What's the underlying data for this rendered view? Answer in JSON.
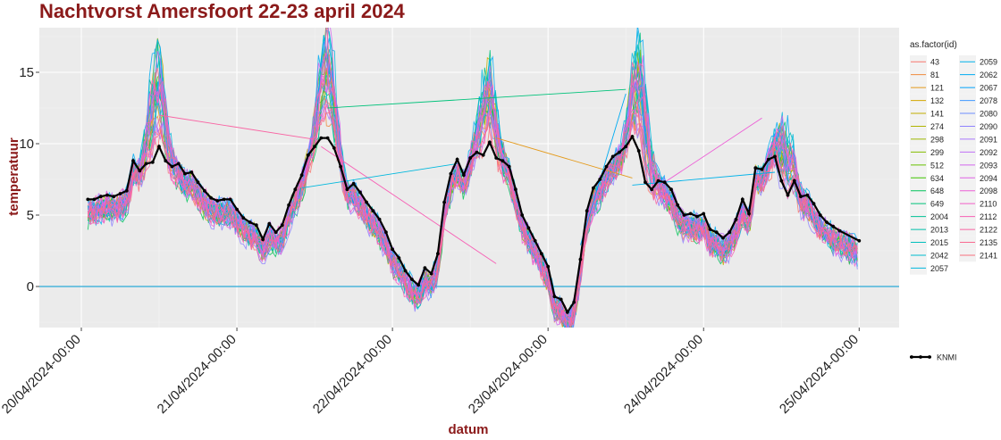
{
  "chart_data": {
    "type": "line",
    "title": "Nachtvorst Amersfoort 22-23 april 2024",
    "xlabel": "datum",
    "ylabel": "temperatuur",
    "ylim": [
      -3.5,
      17.8
    ],
    "xlim": [
      "2024-04-19 23:00",
      "2024-04-25 05:00"
    ],
    "yticks": [
      0,
      5,
      10,
      15
    ],
    "xtick_labels": [
      "20/04/2024-00:00",
      "21/04/2024-00:00",
      "22/04/2024-00:00",
      "23/04/2024-00:00",
      "24/04/2024-00:00",
      "25/04/2024-00:00"
    ],
    "grid": true,
    "reference_line": {
      "y": 0,
      "color": "#29a9d8"
    },
    "legend": {
      "title": "as.factor(id)",
      "placement": "right",
      "entries": [
        "43",
        "81",
        "121",
        "132",
        "141",
        "274",
        "298",
        "299",
        "512",
        "634",
        "648",
        "649",
        "2004",
        "2013",
        "2015",
        "2042",
        "2057",
        "2059",
        "2062",
        "2067",
        "2078",
        "2080",
        "2090",
        "2091",
        "2092",
        "2093",
        "2094",
        "2098",
        "2110",
        "2112",
        "2122",
        "2135",
        "2141"
      ],
      "colors": [
        "#f8766d",
        "#f08a3c",
        "#e49a1b",
        "#d3a600",
        "#c3ad00",
        "#b0b400",
        "#9bb900",
        "#84bd00",
        "#67c100",
        "#3ec400",
        "#00c35a",
        "#00c27a",
        "#00c194",
        "#00c0aa",
        "#00bfbd",
        "#00bccf",
        "#00b8dd",
        "#00b2e9",
        "#00abf2",
        "#00a2fa",
        "#3f98ff",
        "#6c8dff",
        "#8f82ff",
        "#aa78fd",
        "#bf6ff6",
        "#d166ee",
        "#e062e4",
        "#ec5ed6",
        "#f35fc7",
        "#f760b5",
        "#f964a3",
        "#f96a90",
        "#f8707e"
      ],
      "knmi_label": "KNMI"
    },
    "series": [
      {
        "name": "KNMI",
        "color": "#000000",
        "points": [
          [
            "2024-04-20 01:00",
            6.1
          ],
          [
            "2024-04-20 02:00",
            6.1
          ],
          [
            "2024-04-20 03:00",
            6.3
          ],
          [
            "2024-04-20 04:00",
            6.4
          ],
          [
            "2024-04-20 05:00",
            6.3
          ],
          [
            "2024-04-20 06:00",
            6.5
          ],
          [
            "2024-04-20 07:00",
            6.7
          ],
          [
            "2024-04-20 08:00",
            8.8
          ],
          [
            "2024-04-20 09:00",
            8.1
          ],
          [
            "2024-04-20 10:00",
            8.6
          ],
          [
            "2024-04-20 11:00",
            8.7
          ],
          [
            "2024-04-20 12:00",
            9.8
          ],
          [
            "2024-04-20 13:00",
            8.8
          ],
          [
            "2024-04-20 14:00",
            8.4
          ],
          [
            "2024-04-20 15:00",
            8.6
          ],
          [
            "2024-04-20 16:00",
            7.9
          ],
          [
            "2024-04-20 17:00",
            8.0
          ],
          [
            "2024-04-20 18:00",
            7.3
          ],
          [
            "2024-04-20 19:00",
            6.7
          ],
          [
            "2024-04-20 20:00",
            6.2
          ],
          [
            "2024-04-20 21:00",
            6.0
          ],
          [
            "2024-04-20 22:00",
            6.1
          ],
          [
            "2024-04-20 23:00",
            6.1
          ],
          [
            "2024-04-21 00:00",
            5.4
          ],
          [
            "2024-04-21 01:00",
            4.8
          ],
          [
            "2024-04-21 02:00",
            4.5
          ],
          [
            "2024-04-21 03:00",
            4.3
          ],
          [
            "2024-04-21 04:00",
            3.3
          ],
          [
            "2024-04-21 05:00",
            4.4
          ],
          [
            "2024-04-21 06:00",
            3.8
          ],
          [
            "2024-04-21 07:00",
            4.3
          ],
          [
            "2024-04-21 08:00",
            5.7
          ],
          [
            "2024-04-21 09:00",
            6.8
          ],
          [
            "2024-04-21 10:00",
            7.8
          ],
          [
            "2024-04-21 11:00",
            9.2
          ],
          [
            "2024-04-21 12:00",
            9.8
          ],
          [
            "2024-04-21 13:00",
            10.4
          ],
          [
            "2024-04-21 14:00",
            10.4
          ],
          [
            "2024-04-21 15:00",
            9.7
          ],
          [
            "2024-04-21 16:00",
            8.4
          ],
          [
            "2024-04-21 17:00",
            6.8
          ],
          [
            "2024-04-21 18:00",
            7.2
          ],
          [
            "2024-04-21 19:00",
            6.6
          ],
          [
            "2024-04-21 20:00",
            5.9
          ],
          [
            "2024-04-21 21:00",
            5.3
          ],
          [
            "2024-04-21 22:00",
            4.7
          ],
          [
            "2024-04-21 23:00",
            3.8
          ],
          [
            "2024-04-22 00:00",
            2.6
          ],
          [
            "2024-04-22 01:00",
            2.0
          ],
          [
            "2024-04-22 02:00",
            1.1
          ],
          [
            "2024-04-22 03:00",
            0.5
          ],
          [
            "2024-04-22 04:00",
            0.1
          ],
          [
            "2024-04-22 05:00",
            1.3
          ],
          [
            "2024-04-22 06:00",
            0.9
          ],
          [
            "2024-04-22 07:00",
            2.3
          ],
          [
            "2024-04-22 08:00",
            5.9
          ],
          [
            "2024-04-22 09:00",
            7.9
          ],
          [
            "2024-04-22 10:00",
            8.9
          ],
          [
            "2024-04-22 11:00",
            7.8
          ],
          [
            "2024-04-22 12:00",
            9.0
          ],
          [
            "2024-04-22 13:00",
            9.4
          ],
          [
            "2024-04-22 14:00",
            9.2
          ],
          [
            "2024-04-22 15:00",
            10.1
          ],
          [
            "2024-04-22 16:00",
            9.0
          ],
          [
            "2024-04-22 17:00",
            8.8
          ],
          [
            "2024-04-22 18:00",
            8.4
          ],
          [
            "2024-04-22 19:00",
            6.8
          ],
          [
            "2024-04-22 20:00",
            5.0
          ],
          [
            "2024-04-22 21:00",
            4.1
          ],
          [
            "2024-04-22 22:00",
            3.2
          ],
          [
            "2024-04-22 23:00",
            2.3
          ],
          [
            "2024-04-23 00:00",
            1.4
          ],
          [
            "2024-04-23 01:00",
            -0.7
          ],
          [
            "2024-04-23 02:00",
            -0.9
          ],
          [
            "2024-04-23 03:00",
            -1.8
          ],
          [
            "2024-04-23 04:00",
            -1.1
          ],
          [
            "2024-04-23 05:00",
            1.9
          ],
          [
            "2024-04-23 06:00",
            5.3
          ],
          [
            "2024-04-23 07:00",
            6.9
          ],
          [
            "2024-04-23 08:00",
            7.5
          ],
          [
            "2024-04-23 09:00",
            8.4
          ],
          [
            "2024-04-23 10:00",
            9.1
          ],
          [
            "2024-04-23 11:00",
            9.4
          ],
          [
            "2024-04-23 12:00",
            9.8
          ],
          [
            "2024-04-23 13:00",
            10.5
          ],
          [
            "2024-04-23 14:00",
            9.5
          ],
          [
            "2024-04-23 15:00",
            7.3
          ],
          [
            "2024-04-23 16:00",
            6.8
          ],
          [
            "2024-04-23 17:00",
            7.4
          ],
          [
            "2024-04-23 18:00",
            7.3
          ],
          [
            "2024-04-23 19:00",
            6.8
          ],
          [
            "2024-04-23 20:00",
            5.7
          ],
          [
            "2024-04-23 21:00",
            5.0
          ],
          [
            "2024-04-23 22:00",
            5.1
          ],
          [
            "2024-04-23 23:00",
            4.9
          ],
          [
            "2024-04-24 00:00",
            5.1
          ],
          [
            "2024-04-24 01:00",
            4.0
          ],
          [
            "2024-04-24 02:00",
            3.8
          ],
          [
            "2024-04-24 03:00",
            3.4
          ],
          [
            "2024-04-24 04:00",
            3.8
          ],
          [
            "2024-04-24 05:00",
            4.7
          ],
          [
            "2024-04-24 06:00",
            6.1
          ],
          [
            "2024-04-24 07:00",
            5.1
          ],
          [
            "2024-04-24 08:00",
            8.3
          ],
          [
            "2024-04-24 09:00",
            8.2
          ],
          [
            "2024-04-24 10:00",
            8.9
          ],
          [
            "2024-04-24 11:00",
            9.1
          ],
          [
            "2024-04-24 12:00",
            7.4
          ],
          [
            "2024-04-24 13:00",
            6.4
          ],
          [
            "2024-04-24 14:00",
            7.4
          ],
          [
            "2024-04-24 15:00",
            6.3
          ],
          [
            "2024-04-24 16:00",
            6.4
          ],
          [
            "2024-04-24 17:00",
            5.8
          ],
          [
            "2024-04-24 18:00",
            5.0
          ],
          [
            "2024-04-24 19:00",
            4.5
          ],
          [
            "2024-04-24 20:00",
            4.2
          ],
          [
            "2024-04-24 21:00",
            3.9
          ],
          [
            "2024-04-25 00:00",
            3.2
          ]
        ]
      }
    ]
  }
}
